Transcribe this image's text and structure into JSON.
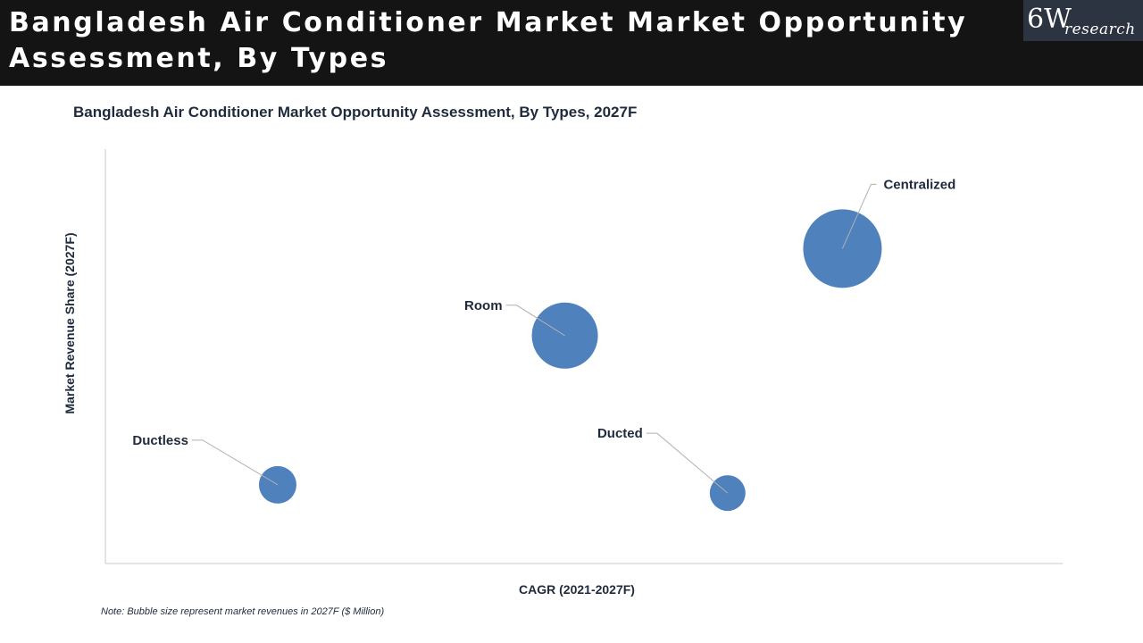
{
  "header": {
    "title": "Bangladesh Air Conditioner Market Market Opportunity Assessment, By Types",
    "logo_main": "6W",
    "logo_sub": "research"
  },
  "footer": {
    "note": "Note: Bubble size represent market revenues in 2027F ($ Million)"
  },
  "chart_data": {
    "type": "scatter",
    "variant": "bubble",
    "title": "Bangladesh Air Conditioner Market Opportunity Assessment, By Types, 2027F",
    "xlabel": "CAGR (2021-2027F)",
    "ylabel": "Market Revenue Share (2027F)",
    "xlim": [
      0,
      100
    ],
    "ylim": [
      0,
      100
    ],
    "grid": false,
    "legend": "none",
    "bubble_color": "#4f81bd",
    "points": [
      {
        "label": "Ductless",
        "x": 18,
        "y": 19,
        "size": 21
      },
      {
        "label": "Room",
        "x": 48,
        "y": 55,
        "size": 37
      },
      {
        "label": "Ducted",
        "x": 65,
        "y": 17,
        "size": 20
      },
      {
        "label": "Centralized",
        "x": 77,
        "y": 76,
        "size": 44
      }
    ]
  }
}
